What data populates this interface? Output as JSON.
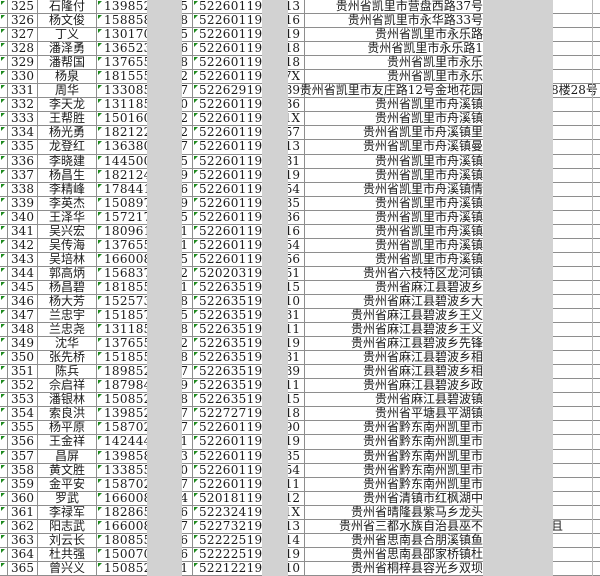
{
  "colors": {
    "grid_line": "#8e8e8e",
    "redaction_bar": "#d2d2d2",
    "error_indicator_green": "#1d8a1d",
    "text": "#1a1a1a",
    "background": "#ffffff"
  },
  "redaction": {
    "bar_count": 3,
    "covers": [
      "phone middle digits",
      "id middle digits",
      "address right part"
    ]
  },
  "table": {
    "rows": [
      {
        "num": "325",
        "name": "石隆付",
        "phone_prefix": "1398521",
        "phone_suffix": "5",
        "id_prefix": "5226011966",
        "id_suffix": "13",
        "address": "贵州省凯里市营盘西路37号",
        "address_after": ""
      },
      {
        "num": "326",
        "name": "杨文俊",
        "phone_prefix": "1588583",
        "phone_suffix": "8",
        "id_prefix": "5226011970",
        "id_suffix": "16",
        "address": "贵州省凯里市永华路33号",
        "address_after": ""
      },
      {
        "num": "327",
        "name": "丁义",
        "phone_prefix": "1301703",
        "phone_suffix": "5",
        "id_prefix": "5226011964",
        "id_suffix": "19",
        "address": "贵州省凯里市永乐路",
        "address_after": ""
      },
      {
        "num": "328",
        "name": "潘泽勇",
        "phone_prefix": "1365236",
        "phone_suffix": "6",
        "id_prefix": "5226011974",
        "id_suffix": "18",
        "address": "贵州省凯里市永乐路1",
        "address_after": ""
      },
      {
        "num": "329",
        "name": "潘帮国",
        "phone_prefix": "1376553",
        "phone_suffix": "8",
        "id_prefix": "5226011965",
        "id_suffix": "18",
        "address": "贵州省凯里市永乐",
        "address_after": ""
      },
      {
        "num": "330",
        "name": "杨泉",
        "phone_prefix": "1815553",
        "phone_suffix": "2",
        "id_prefix": "5226011975",
        "id_suffix": "7X",
        "address": "贵州省凯里市永乐",
        "address_after": ""
      },
      {
        "num": "331",
        "name": "周华",
        "phone_prefix": "1330855",
        "phone_suffix": "7",
        "id_prefix": "5226291970",
        "id_suffix": "39",
        "address": "贵州省凯里市友庄路12号金地花园",
        "address_after": "8楼28号"
      },
      {
        "num": "332",
        "name": "李天龙",
        "phone_prefix": "1311855",
        "phone_suffix": "0",
        "id_prefix": "5226011974",
        "id_suffix": "36",
        "address": "贵州省凯里市舟溪镇",
        "address_after": ""
      },
      {
        "num": "333",
        "name": "王帮胜",
        "phone_prefix": "1501603",
        "phone_suffix": "2",
        "id_prefix": "5226011980",
        "id_suffix": "1X",
        "address": "贵州省凯里市舟溪镇",
        "address_after": ""
      },
      {
        "num": "334",
        "name": "杨光勇",
        "phone_prefix": "1821225",
        "phone_suffix": "2",
        "id_prefix": "5226011973",
        "id_suffix": "57",
        "address": "贵州省凯里市舟溪镇里",
        "address_after": ""
      },
      {
        "num": "335",
        "name": "龙登红",
        "phone_prefix": "1363803",
        "phone_suffix": "7",
        "id_prefix": "5226011982",
        "id_suffix": "13",
        "address": "贵州省凯里市舟溪镇曼",
        "address_after": ""
      },
      {
        "num": "336",
        "name": "李晓建",
        "phone_prefix": "1445003",
        "phone_suffix": "5",
        "id_prefix": "5226011980",
        "id_suffix": "31",
        "address": "贵州省凯里市舟溪镇",
        "address_after": ""
      },
      {
        "num": "337",
        "name": "杨昌生",
        "phone_prefix": "1821241",
        "phone_suffix": "9",
        "id_prefix": "5226011982",
        "id_suffix": "19",
        "address": "贵州省凯里市舟溪镇",
        "address_after": ""
      },
      {
        "num": "338",
        "name": "李精峰",
        "phone_prefix": "1784410",
        "phone_suffix": "6",
        "id_prefix": "5226011974",
        "id_suffix": "54",
        "address": "贵州省凯里市舟溪镇情",
        "address_after": ""
      },
      {
        "num": "339",
        "name": "李英杰",
        "phone_prefix": "1508970",
        "phone_suffix": "9",
        "id_prefix": "5226011982",
        "id_suffix": "35",
        "address": "贵州省凯里市舟溪镇",
        "address_after": ""
      },
      {
        "num": "340",
        "name": "王泽华",
        "phone_prefix": "1572177",
        "phone_suffix": "5",
        "id_prefix": "5226011978",
        "id_suffix": "36",
        "address": "贵州省凯里市舟溪镇",
        "address_after": ""
      },
      {
        "num": "341",
        "name": "吴兴宏",
        "phone_prefix": "1809613",
        "phone_suffix": "1",
        "id_prefix": "5226011970",
        "id_suffix": "16",
        "address": "贵州省凯里市舟溪镇",
        "address_after": ""
      },
      {
        "num": "342",
        "name": "吴传海",
        "phone_prefix": "1376553",
        "phone_suffix": "1",
        "id_prefix": "5226011985",
        "id_suffix": "54",
        "address": "贵州省凯里市舟溪镇",
        "address_after": ""
      },
      {
        "num": "343",
        "name": "吴培林",
        "phone_prefix": "1660080",
        "phone_suffix": "5",
        "id_prefix": "5226011976",
        "id_suffix": "56",
        "address": "贵州省凯里市舟溪镇",
        "address_after": ""
      },
      {
        "num": "344",
        "name": "郭高炳",
        "phone_prefix": "1568375",
        "phone_suffix": "2",
        "id_prefix": "5202031997",
        "id_suffix": "51",
        "address": "贵州省六枝特区龙河镇",
        "address_after": ""
      },
      {
        "num": "345",
        "name": "杨昌碧",
        "phone_prefix": "181855",
        "phone_suffix": "1",
        "id_prefix": "5226351975",
        "id_suffix": "15",
        "address": "贵州省麻江县碧波乡",
        "address_after": ""
      },
      {
        "num": "346",
        "name": "杨大芳",
        "phone_prefix": "152573",
        "phone_suffix": "8",
        "id_prefix": "5226351989",
        "id_suffix": "10",
        "address": "贵州省麻江县碧波乡大",
        "address_after": ""
      },
      {
        "num": "347",
        "name": "兰忠宇",
        "phone_prefix": "151857",
        "phone_suffix": "5",
        "id_prefix": "5226351976",
        "id_suffix": "31",
        "address": "贵州省麻江县碧波乡王义",
        "address_after": ""
      },
      {
        "num": "348",
        "name": "兰忠尧",
        "phone_prefix": "131185",
        "phone_suffix": "8",
        "id_prefix": "5226351970",
        "id_suffix": "11",
        "address": "贵州省麻江县碧波乡王义",
        "address_after": ""
      },
      {
        "num": "349",
        "name": "沈华",
        "phone_prefix": "137655",
        "phone_suffix": "2",
        "id_prefix": "5226351969",
        "id_suffix": "19",
        "address": "贵州省麻江县碧波乡先锋",
        "address_after": ""
      },
      {
        "num": "350",
        "name": "张先桥",
        "phone_prefix": "151855",
        "phone_suffix": "8",
        "id_prefix": "5226351975",
        "id_suffix": "31",
        "address": "贵州省麻江县碧波乡相",
        "address_after": ""
      },
      {
        "num": "351",
        "name": "陈兵",
        "phone_prefix": "189852",
        "phone_suffix": "7",
        "id_prefix": "5226351973",
        "id_suffix": "39",
        "address": "贵州省麻江县碧波乡相",
        "address_after": ""
      },
      {
        "num": "352",
        "name": "佘启祥",
        "phone_prefix": "187984",
        "phone_suffix": "9",
        "id_prefix": "5226351981",
        "id_suffix": "11",
        "address": "贵州省麻江县碧波乡政",
        "address_after": ""
      },
      {
        "num": "353",
        "name": "潘银林",
        "phone_prefix": "150852",
        "phone_suffix": "8",
        "id_prefix": "5226351982",
        "id_suffix": "15",
        "address": "贵州省麻江县碧波镇",
        "address_after": ""
      },
      {
        "num": "354",
        "name": "索良洪",
        "phone_prefix": "139852",
        "phone_suffix": "7",
        "id_prefix": "5227271970",
        "id_suffix": "18",
        "address": "贵州省平塘县平湖镇",
        "address_after": ""
      },
      {
        "num": "355",
        "name": "杨平原",
        "phone_prefix": "158702",
        "phone_suffix": "7",
        "id_prefix": "5226011964",
        "id_suffix": "90",
        "address": "贵州省黔东南州凯里市",
        "address_after": ""
      },
      {
        "num": "356",
        "name": "王金祥",
        "phone_prefix": "142444",
        "phone_suffix": "1",
        "id_prefix": "5226011972",
        "id_suffix": "19",
        "address": "贵州省黔东南州凯里市",
        "address_after": ""
      },
      {
        "num": "357",
        "name": "昌屏",
        "phone_prefix": "139858",
        "phone_suffix": "3",
        "id_prefix": "5226011966",
        "id_suffix": "35",
        "address": "贵州省黔东南州凯里市",
        "address_after": ""
      },
      {
        "num": "358",
        "name": "黄文胜",
        "phone_prefix": "133855",
        "phone_suffix": "0",
        "id_prefix": "5226011964",
        "id_suffix": "54",
        "address": "贵州省黔东南州凯里市",
        "address_after": ""
      },
      {
        "num": "359",
        "name": "金平安",
        "phone_prefix": "158702",
        "phone_suffix": "7",
        "id_prefix": "5226011963",
        "id_suffix": "11",
        "address": "贵州省黔东南州凯里市",
        "address_after": ""
      },
      {
        "num": "360",
        "name": "罗武",
        "phone_prefix": "166008",
        "phone_suffix": "4",
        "id_prefix": "5201811974",
        "id_suffix": "12",
        "address": "贵州省清镇市红枫湖中",
        "address_after": ""
      },
      {
        "num": "361",
        "name": "李禄军",
        "phone_prefix": "182865",
        "phone_suffix": "6",
        "id_prefix": "5223241997",
        "id_suffix": "1X",
        "address": "贵州省晴隆县紫马乡龙头",
        "address_after": ""
      },
      {
        "num": "362",
        "name": "阳志武",
        "phone_prefix": "166008",
        "phone_suffix": "7",
        "id_prefix": "5227321962",
        "id_suffix": "13",
        "address": "贵州省三都水族自治县巫不",
        "address_after": "且"
      },
      {
        "num": "363",
        "name": "刘云长",
        "phone_prefix": "180855",
        "phone_suffix": "6",
        "id_prefix": "5222251982",
        "id_suffix": "14",
        "address": "贵州省思南县合朋溪镇鱼",
        "address_after": ""
      },
      {
        "num": "364",
        "name": "杜共强",
        "phone_prefix": "150070",
        "phone_suffix": "6",
        "id_prefix": "5222251977",
        "id_suffix": "19",
        "address": "贵州省思南县邵家桥镇杜",
        "address_after": ""
      },
      {
        "num": "365",
        "name": "曾兴义",
        "phone_prefix": "150852",
        "phone_suffix": "1",
        "id_prefix": "5221221995",
        "id_suffix": "10",
        "address": "贵州省桐梓县容光乡双坝",
        "address_after": ""
      }
    ]
  }
}
